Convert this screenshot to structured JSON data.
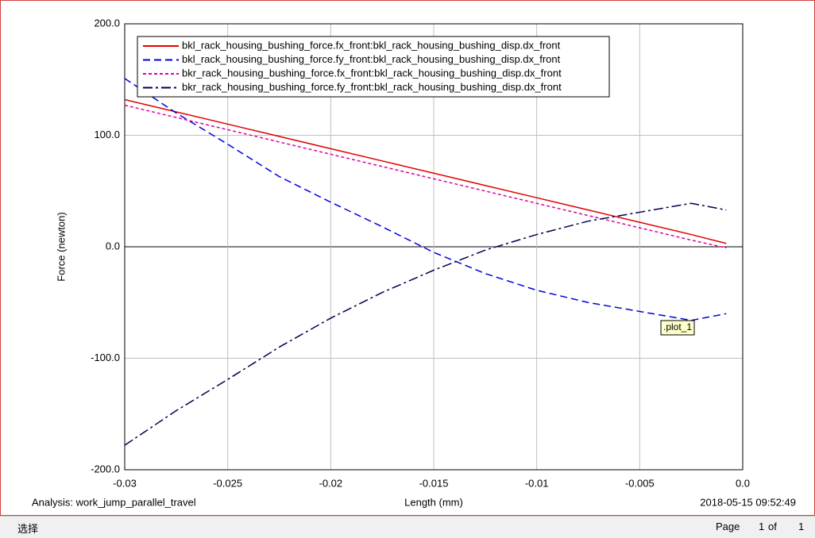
{
  "chart_data": {
    "type": "line",
    "x_label": "Length (mm)",
    "y_label": "Force (newton)",
    "analysis": "Analysis:  work_jump_parallel_travel",
    "timestamp": "2018-05-15 09:52:49",
    "annotation": ".plot_1",
    "x": [
      -0.03,
      -0.0275,
      -0.025,
      -0.0225,
      -0.02,
      -0.0175,
      -0.015,
      -0.0125,
      -0.01,
      -0.0075,
      -0.005,
      -0.0025,
      -0.0008
    ],
    "series": [
      {
        "name": "bkl_rack_housing_bushing_force.fx_front:bkl_rack_housing_bushing_disp.dx_front",
        "color": "#e00000",
        "line_style": "solid",
        "values": [
          132,
          121,
          110,
          99,
          88,
          77,
          66,
          55,
          44,
          33,
          22,
          11,
          3
        ]
      },
      {
        "name": "bkl_rack_housing_bushing_force.fy_front:bkl_rack_housing_bushing_disp.dx_front",
        "color": "#0000e0",
        "line_style": "dashed",
        "values": [
          151,
          120,
          92,
          63,
          40,
          18,
          -5,
          -24,
          -39,
          -50,
          -58,
          -66,
          -60
        ]
      },
      {
        "name": "bkr_rack_housing_bushing_force.fx_front:bkl_rack_housing_bushing_disp.dx_front",
        "color": "#e000a0",
        "line_style": "dotted",
        "values": [
          127,
          116,
          105,
          94,
          83,
          72,
          61,
          50,
          39,
          28,
          17,
          6,
          -1
        ]
      },
      {
        "name": "bkr_rack_housing_bushing_force.fy_front:bkl_rack_housing_bushing_disp.dx_front",
        "color": "#000050",
        "line_style": "dashdot",
        "values": [
          -178,
          -147,
          -119,
          -90,
          -64,
          -41,
          -21,
          -3,
          11,
          23,
          31,
          39,
          33
        ]
      }
    ],
    "xlim": [
      -0.03,
      0
    ],
    "ylim": [
      -200,
      200
    ],
    "xticks": [
      -0.03,
      -0.025,
      -0.02,
      -0.015,
      -0.01,
      -0.005,
      {
        "value": 0,
        "label": "0.0"
      }
    ],
    "yticks": [
      {
        "value": 200,
        "label": "200.0"
      },
      {
        "value": 100,
        "label": "100.0"
      },
      {
        "value": 0,
        "label": "0.0"
      },
      {
        "value": -100,
        "label": "-100.0"
      },
      {
        "value": -200,
        "label": "-200.0"
      }
    ],
    "grid": true,
    "legend": "top-left"
  },
  "status_bar": {
    "mode": "选择",
    "page_label": "Page",
    "page": "1",
    "of_label": "of",
    "pages": "1"
  }
}
